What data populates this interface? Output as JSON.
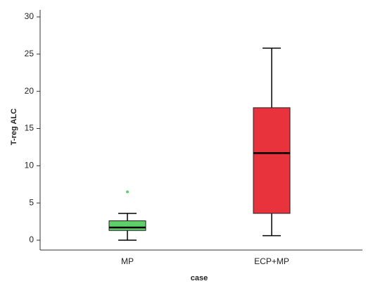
{
  "chart_data": {
    "type": "box",
    "x_label": "case",
    "y_label": "T-reg ALC",
    "categories": [
      "MP",
      "ECP+MP"
    ],
    "boxes": [
      {
        "min": 0,
        "q1": 1.3,
        "median": 1.7,
        "q3": 2.6,
        "max": 3.6,
        "outliers": [
          6.5
        ],
        "color": "#5fd068"
      },
      {
        "min": 0.6,
        "q1": 3.6,
        "median": 11.7,
        "q3": 17.8,
        "max": 25.8,
        "outliers": [],
        "color": "#e8323c"
      }
    ],
    "ylim": [
      0,
      30
    ],
    "yticks": [
      0,
      5,
      10,
      15,
      20,
      25,
      30
    ]
  }
}
